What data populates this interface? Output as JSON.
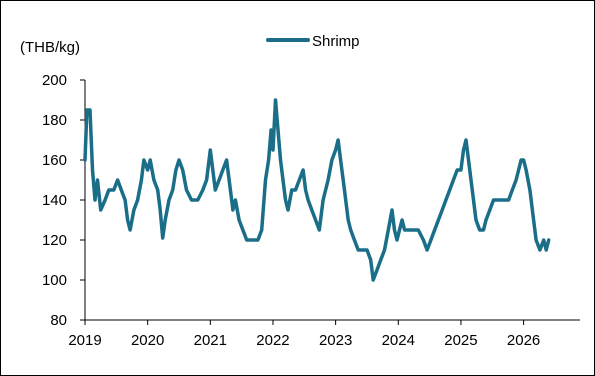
{
  "chart_data": {
    "type": "line",
    "ylabel": "(THB/kg)",
    "ylim": [
      80,
      200
    ],
    "yticks": [
      80,
      100,
      120,
      140,
      160,
      180,
      200
    ],
    "xlim": [
      2019,
      2026.9
    ],
    "xticks": [
      2019,
      2020,
      2021,
      2022,
      2023,
      2024,
      2025,
      2026
    ],
    "grid": false,
    "legend_position": "top-center",
    "series": [
      {
        "name": "Shrimp",
        "color": "#1a6e87",
        "points": [
          [
            2019.0,
            160
          ],
          [
            2019.03,
            185
          ],
          [
            2019.08,
            185
          ],
          [
            2019.12,
            155
          ],
          [
            2019.16,
            140
          ],
          [
            2019.2,
            150
          ],
          [
            2019.25,
            135
          ],
          [
            2019.32,
            140
          ],
          [
            2019.38,
            145
          ],
          [
            2019.46,
            145
          ],
          [
            2019.52,
            150
          ],
          [
            2019.58,
            145
          ],
          [
            2019.64,
            140
          ],
          [
            2019.68,
            130
          ],
          [
            2019.72,
            125
          ],
          [
            2019.78,
            135
          ],
          [
            2019.84,
            140
          ],
          [
            2019.9,
            150
          ],
          [
            2019.94,
            160
          ],
          [
            2020.0,
            155
          ],
          [
            2020.04,
            160
          ],
          [
            2020.1,
            150
          ],
          [
            2020.16,
            145
          ],
          [
            2020.2,
            135
          ],
          [
            2020.24,
            121
          ],
          [
            2020.28,
            130
          ],
          [
            2020.34,
            140
          ],
          [
            2020.4,
            145
          ],
          [
            2020.45,
            155
          ],
          [
            2020.5,
            160
          ],
          [
            2020.56,
            155
          ],
          [
            2020.62,
            145
          ],
          [
            2020.7,
            140
          ],
          [
            2020.8,
            140
          ],
          [
            2020.88,
            145
          ],
          [
            2020.94,
            150
          ],
          [
            2021.0,
            165
          ],
          [
            2021.04,
            155
          ],
          [
            2021.08,
            145
          ],
          [
            2021.14,
            150
          ],
          [
            2021.2,
            155
          ],
          [
            2021.26,
            160
          ],
          [
            2021.32,
            145
          ],
          [
            2021.36,
            135
          ],
          [
            2021.4,
            140
          ],
          [
            2021.46,
            130
          ],
          [
            2021.52,
            125
          ],
          [
            2021.58,
            120
          ],
          [
            2021.66,
            120
          ],
          [
            2021.76,
            120
          ],
          [
            2021.82,
            125
          ],
          [
            2021.88,
            150
          ],
          [
            2021.93,
            160
          ],
          [
            2021.97,
            175
          ],
          [
            2022.0,
            165
          ],
          [
            2022.04,
            190
          ],
          [
            2022.08,
            175
          ],
          [
            2022.12,
            160
          ],
          [
            2022.16,
            150
          ],
          [
            2022.2,
            140
          ],
          [
            2022.24,
            135
          ],
          [
            2022.3,
            145
          ],
          [
            2022.36,
            145
          ],
          [
            2022.42,
            150
          ],
          [
            2022.48,
            155
          ],
          [
            2022.52,
            145
          ],
          [
            2022.56,
            140
          ],
          [
            2022.62,
            135
          ],
          [
            2022.68,
            130
          ],
          [
            2022.74,
            125
          ],
          [
            2022.8,
            140
          ],
          [
            2022.84,
            145
          ],
          [
            2022.88,
            150
          ],
          [
            2022.94,
            160
          ],
          [
            2023.0,
            165
          ],
          [
            2023.04,
            170
          ],
          [
            2023.08,
            160
          ],
          [
            2023.12,
            150
          ],
          [
            2023.16,
            140
          ],
          [
            2023.2,
            130
          ],
          [
            2023.24,
            125
          ],
          [
            2023.3,
            120
          ],
          [
            2023.36,
            115
          ],
          [
            2023.5,
            115
          ],
          [
            2023.56,
            110
          ],
          [
            2023.6,
            100
          ],
          [
            2023.66,
            105
          ],
          [
            2023.72,
            110
          ],
          [
            2023.78,
            115
          ],
          [
            2023.84,
            125
          ],
          [
            2023.9,
            135
          ],
          [
            2023.94,
            125
          ],
          [
            2023.98,
            120
          ],
          [
            2024.02,
            125
          ],
          [
            2024.06,
            130
          ],
          [
            2024.1,
            125
          ],
          [
            2024.16,
            125
          ],
          [
            2024.24,
            125
          ],
          [
            2024.32,
            125
          ],
          [
            2024.4,
            120
          ],
          [
            2024.46,
            115
          ],
          [
            2024.52,
            120
          ],
          [
            2024.58,
            125
          ],
          [
            2024.64,
            130
          ],
          [
            2024.7,
            135
          ],
          [
            2024.76,
            140
          ],
          [
            2024.82,
            145
          ],
          [
            2024.88,
            150
          ],
          [
            2024.94,
            155
          ],
          [
            2025.0,
            155
          ],
          [
            2025.04,
            165
          ],
          [
            2025.08,
            170
          ],
          [
            2025.12,
            160
          ],
          [
            2025.16,
            150
          ],
          [
            2025.2,
            140
          ],
          [
            2025.24,
            130
          ],
          [
            2025.3,
            125
          ],
          [
            2025.36,
            125
          ],
          [
            2025.4,
            130
          ],
          [
            2025.46,
            135
          ],
          [
            2025.52,
            140
          ],
          [
            2025.6,
            140
          ],
          [
            2025.68,
            140
          ],
          [
            2025.76,
            140
          ],
          [
            2025.82,
            145
          ],
          [
            2025.88,
            150
          ],
          [
            2025.92,
            155
          ],
          [
            2025.96,
            160
          ],
          [
            2026.0,
            160
          ],
          [
            2026.04,
            155
          ],
          [
            2026.1,
            145
          ],
          [
            2026.16,
            130
          ],
          [
            2026.2,
            120
          ],
          [
            2026.26,
            115
          ],
          [
            2026.32,
            120
          ],
          [
            2026.36,
            115
          ],
          [
            2026.4,
            120
          ]
        ]
      }
    ]
  }
}
